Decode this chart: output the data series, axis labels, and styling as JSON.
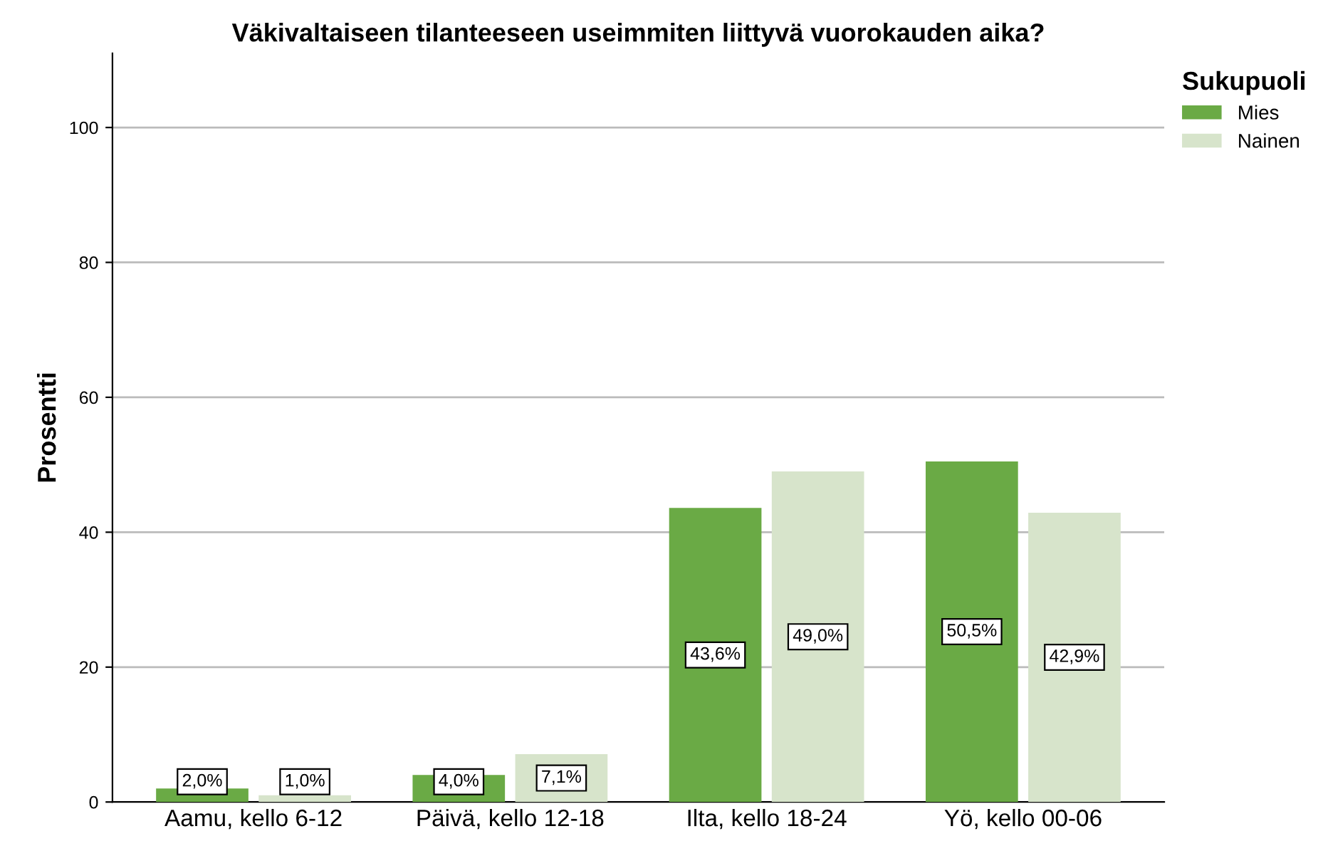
{
  "chart_data": {
    "type": "bar",
    "title": "Väkivaltaiseen tilanteeseen useimmiten liittyvä vuorokauden aika?",
    "ylabel": "Prosentti",
    "legend_title": "Sukupuoli",
    "categories": [
      "Aamu, kello 6-12",
      "Päivä, kello 12-18",
      "Ilta, kello 18-24",
      "Yö, kello 00-06"
    ],
    "series": [
      {
        "name": "Mies",
        "color": "#6aaa45",
        "values": [
          2.0,
          4.0,
          43.6,
          50.5
        ],
        "value_labels": [
          "2,0%",
          "4,0%",
          "43,6%",
          "50,5%"
        ]
      },
      {
        "name": "Nainen",
        "color": "#d7e4cb",
        "values": [
          1.0,
          7.1,
          49.0,
          42.9
        ],
        "value_labels": [
          "1,0%",
          "7,1%",
          "49,0%",
          "42,9%"
        ]
      }
    ],
    "ylim": [
      0,
      111
    ],
    "yticks": [
      0,
      20,
      40,
      60,
      80,
      100
    ],
    "grid": "y",
    "legend": "top right"
  }
}
